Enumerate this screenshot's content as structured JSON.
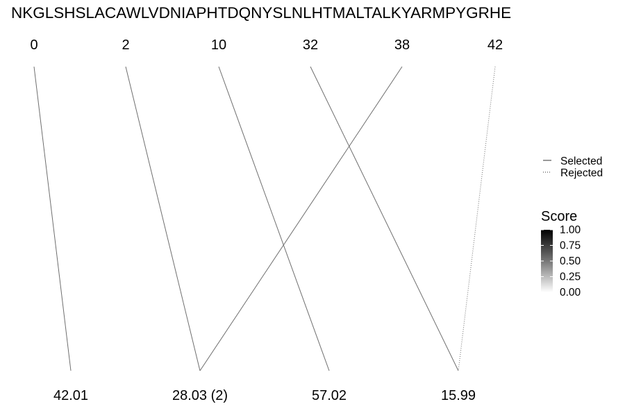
{
  "sequence": "NKGLSHSLACAWLVDNIAPHTDQNYSLNLHTMALTALKYARMPYGRHE",
  "top_positions": [
    "0",
    "2",
    "10",
    "32",
    "38",
    "42"
  ],
  "bottom_values": [
    "42.01",
    "28.03 (2)",
    "57.02",
    "15.99"
  ],
  "links": [
    {
      "from": 0,
      "to": 0,
      "status": "selected",
      "score": 0.5
    },
    {
      "from": 1,
      "to": 1,
      "status": "selected",
      "score": 0.5
    },
    {
      "from": 2,
      "to": 2,
      "status": "selected",
      "score": 0.5
    },
    {
      "from": 3,
      "to": 3,
      "status": "selected",
      "score": 0.5
    },
    {
      "from": 4,
      "to": 1,
      "status": "selected",
      "score": 0.5
    },
    {
      "from": 5,
      "to": 3,
      "status": "rejected",
      "score": 0.5
    }
  ],
  "legend": {
    "linetype_items": [
      {
        "label": "Selected",
        "style": "solid"
      },
      {
        "label": "Rejected",
        "style": "dotted"
      }
    ],
    "score_title": "Score",
    "score_ticks": [
      "1.00",
      "0.75",
      "0.50",
      "0.25",
      "0.00"
    ],
    "score_range": [
      0,
      1
    ],
    "gradient_colors": [
      "#000000",
      "#ffffff"
    ]
  },
  "colors": {
    "line": "#6e6e6e",
    "text": "#000000",
    "background": "#ffffff"
  }
}
